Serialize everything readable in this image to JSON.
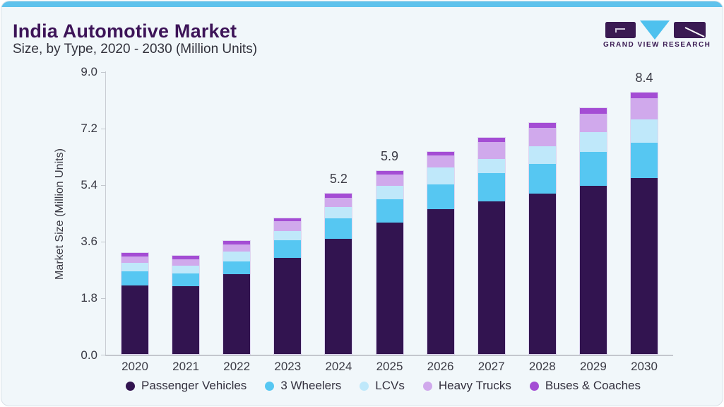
{
  "header": {
    "title": "India Automotive Market",
    "subtitle": "Size, by Type, 2020 - 2030 (Million Units)",
    "logo_text": "GRAND VIEW RESEARCH"
  },
  "colors": {
    "card_background": "#f1f7fa",
    "top_strip": "#5ec2ec",
    "title_text": "#3d1458",
    "axis_text": "#3a3a44",
    "logo_purple": "#3a1a52",
    "logo_cyan": "#4ec1ee"
  },
  "chart_data": {
    "type": "bar",
    "stacked": true,
    "title": "India Automotive Market Size, by Type, 2020 - 2030 (Million Units)",
    "ylabel": "Market Size (Million Units)",
    "xlabel": "",
    "ylim": [
      0,
      9.0
    ],
    "yticks": [
      "0.0",
      "1.8",
      "3.6",
      "5.4",
      "7.2",
      "9.0"
    ],
    "grid": false,
    "legend_position": "bottom",
    "categories": [
      "2020",
      "2021",
      "2022",
      "2023",
      "2024",
      "2025",
      "2026",
      "2027",
      "2028",
      "2029",
      "2030"
    ],
    "series": [
      {
        "name": "Passenger Vehicles",
        "color": "#321450",
        "values": [
          2.22,
          2.18,
          2.58,
          3.09,
          3.7,
          4.22,
          4.64,
          4.88,
          5.13,
          5.37,
          5.63
        ]
      },
      {
        "name": "3 Wheelers",
        "color": "#56c7f2",
        "values": [
          0.44,
          0.41,
          0.41,
          0.56,
          0.65,
          0.74,
          0.8,
          0.9,
          0.96,
          1.1,
          1.13
        ]
      },
      {
        "name": "LCVs",
        "color": "#bfe8fa",
        "values": [
          0.28,
          0.26,
          0.3,
          0.3,
          0.37,
          0.42,
          0.53,
          0.47,
          0.56,
          0.62,
          0.74
        ]
      },
      {
        "name": "Heavy Trucks",
        "color": "#d0a9ec",
        "values": [
          0.21,
          0.21,
          0.24,
          0.31,
          0.3,
          0.37,
          0.38,
          0.54,
          0.58,
          0.59,
          0.67
        ]
      },
      {
        "name": "Buses & Coaches",
        "color": "#a44dd4",
        "values": [
          0.1,
          0.1,
          0.1,
          0.11,
          0.13,
          0.12,
          0.12,
          0.13,
          0.16,
          0.18,
          0.2
        ]
      }
    ],
    "total_labels": {
      "2024": "5.2",
      "2025": "5.9",
      "2030": "8.4"
    }
  }
}
